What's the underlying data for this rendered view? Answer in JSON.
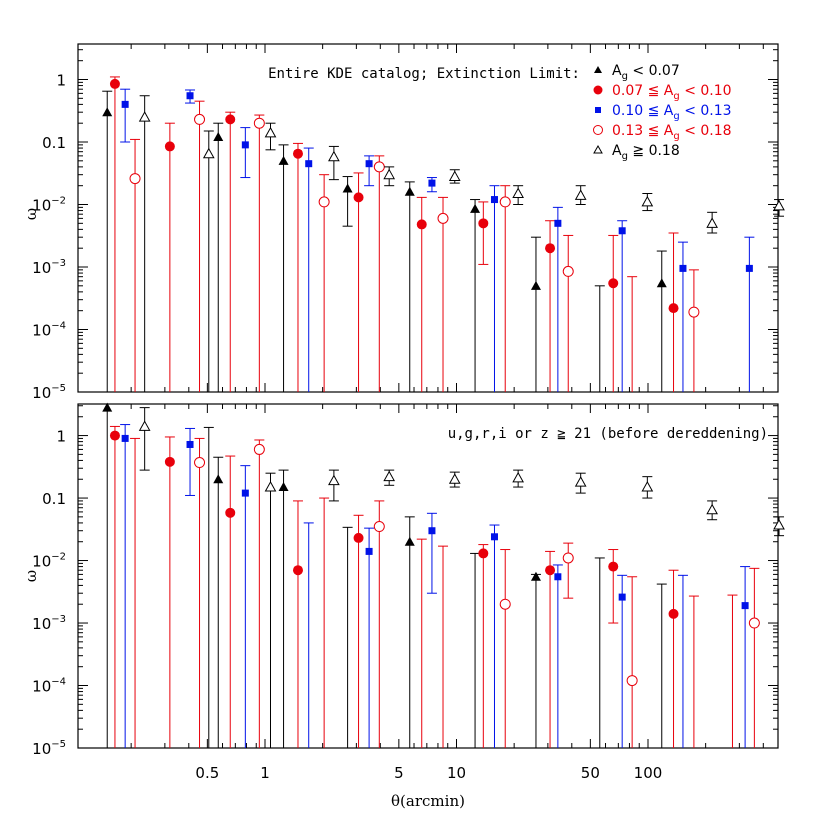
{
  "chart_data": [
    {
      "type": "scatter",
      "panel": "top",
      "title": "Entire KDE catalog; Extinction Limit:",
      "xlabel": "θ(arcmin)",
      "ylabel": "ω",
      "xscale": "log",
      "yscale": "log",
      "xlim": [
        0.12,
        520
      ],
      "ylim": [
        1e-05,
        5
      ],
      "xticks": [
        "0.5",
        "1",
        "5",
        "10",
        "50",
        "100"
      ],
      "yticks": [
        "1",
        "0.1",
        "10⁻²",
        "10⁻³",
        "10⁻⁴",
        "10⁻⁵"
      ],
      "grid": false,
      "legend_position": "top-right",
      "series": [
        {
          "name": "A_g < 0.07",
          "marker": "filled-triangle",
          "color": "#000000",
          "points": [
            [
              0.15,
              0.3,
              1e-05,
              0.65
            ],
            [
              0.57,
              0.12,
              1e-05,
              0.2
            ],
            [
              1.25,
              0.05,
              1e-05,
              0.09
            ],
            [
              2.7,
              0.018,
              0.0045,
              0.028
            ],
            [
              5.7,
              0.016,
              1e-05,
              0.023
            ],
            [
              12.5,
              0.0085,
              1e-05,
              0.012
            ],
            [
              26,
              0.0005,
              1e-05,
              0.003
            ],
            [
              56,
              1e-05,
              1e-05,
              0.0005
            ],
            [
              118,
              0.00055,
              1e-05,
              0.0018
            ]
          ]
        },
        {
          "name": "0.07 ≦ A_g < 0.10",
          "marker": "filled-circle",
          "color": "#e8000b",
          "points": [
            [
              0.155,
              0.85,
              1e-05,
              1.1
            ],
            [
              0.3,
              0.085,
              1e-05,
              0.2
            ],
            [
              0.62,
              0.23,
              1e-05,
              0.3
            ],
            [
              1.4,
              0.065,
              1e-05,
              0.095
            ],
            [
              2.9,
              0.013,
              1e-05,
              0.032
            ],
            [
              6.2,
              0.0048,
              1e-05,
              0.013
            ],
            [
              13,
              0.005,
              0.0011,
              0.011
            ],
            [
              29,
              0.002,
              1e-05,
              0.0055
            ],
            [
              62,
              0.00055,
              1e-05,
              0.0032
            ],
            [
              128,
              0.00022,
              1e-05,
              0.0035
            ]
          ]
        },
        {
          "name": "0.10 ≦ A_g < 0.13",
          "marker": "filled-square",
          "color": "#0012e8",
          "points": [
            [
              0.165,
              0.4,
              0.1,
              0.7
            ],
            [
              0.36,
              0.55,
              0.42,
              0.68
            ],
            [
              0.7,
              0.09,
              0.027,
              0.17
            ],
            [
              1.5,
              0.045,
              1e-05,
              0.08
            ],
            [
              3.1,
              0.045,
              0.02,
              0.06
            ],
            [
              6.6,
              0.022,
              0.016,
              0.027
            ],
            [
              14,
              0.012,
              1e-05,
              0.02
            ],
            [
              30,
              0.005,
              1e-05,
              0.009
            ],
            [
              65,
              0.0038,
              1e-05,
              0.0055
            ],
            [
              135,
              0.00095,
              1e-05,
              0.0025
            ],
            [
              300,
              0.00095,
              1e-05,
              0.003
            ]
          ]
        },
        {
          "name": "0.13 ≦ A_g < 0.18",
          "marker": "open-circle",
          "color": "#e8000b",
          "points": [
            [
              0.175,
              0.026,
              1e-05,
              0.11
            ],
            [
              0.38,
              0.23,
              1e-05,
              0.45
            ],
            [
              0.78,
              0.2,
              1e-05,
              0.27
            ],
            [
              1.7,
              0.011,
              1e-05,
              0.03
            ],
            [
              3.3,
              0.04,
              1e-05,
              0.06
            ],
            [
              7.1,
              0.006,
              1e-05,
              0.013
            ],
            [
              15,
              0.011,
              1e-05,
              0.02
            ],
            [
              32,
              0.00085,
              1e-05,
              0.0032
            ],
            [
              69,
              1e-05,
              1e-05,
              0.0007
            ],
            [
              145,
              0.00019,
              1e-05,
              0.0009
            ]
          ]
        },
        {
          "name": "A_g ≧ 0.18",
          "marker": "open-triangle",
          "color": "#000000",
          "points": [
            [
              0.185,
              0.25,
              1e-05,
              0.55
            ],
            [
              0.4,
              0.065,
              1e-05,
              0.15
            ],
            [
              0.84,
              0.14,
              0.075,
              0.2
            ],
            [
              1.8,
              0.058,
              0.025,
              0.085
            ],
            [
              3.5,
              0.03,
              0.02,
              0.04
            ],
            [
              7.7,
              0.028,
              0.022,
              0.036
            ],
            [
              16.5,
              0.015,
              0.01,
              0.02
            ],
            [
              35,
              0.014,
              0.01,
              0.02
            ],
            [
              78,
              0.011,
              0.008,
              0.015
            ],
            [
              170,
              0.005,
              0.0035,
              0.0075
            ],
            [
              380,
              0.0095,
              0.0065,
              0.012
            ]
          ]
        }
      ]
    },
    {
      "type": "scatter",
      "panel": "bottom",
      "title": "u,g,r,i or z ≧ 21 (before dereddening)",
      "xlabel": "θ(arcmin)",
      "ylabel": "ω",
      "xscale": "log",
      "yscale": "log",
      "xlim": [
        0.12,
        520
      ],
      "ylim": [
        1e-05,
        5
      ],
      "xticks": [
        "0.5",
        "1",
        "5",
        "10",
        "50",
        "100"
      ],
      "yticks": [
        "1",
        "0.1",
        "10⁻²",
        "10⁻³",
        "10⁻⁴",
        "10⁻⁵"
      ],
      "grid": false,
      "series": [
        {
          "name": "A_g < 0.07",
          "marker": "filled-triangle",
          "color": "#000000",
          "points": [
            [
              0.15,
              2.8,
              1e-05,
              3.5
            ],
            [
              0.57,
              0.2,
              1e-05,
              0.45
            ],
            [
              1.25,
              0.15,
              1e-05,
              0.28
            ],
            [
              2.7,
              1e-05,
              1e-05,
              0.034
            ],
            [
              5.7,
              0.02,
              1e-05,
              0.05
            ],
            [
              12.5,
              1e-05,
              1e-05,
              0.013
            ],
            [
              26,
              0.0055,
              1e-05,
              0.006
            ],
            [
              56,
              1e-05,
              1e-05,
              0.011
            ],
            [
              118,
              1e-05,
              1e-05,
              0.0042
            ]
          ]
        },
        {
          "name": "0.07 ≦ A_g < 0.10",
          "marker": "filled-circle",
          "color": "#e8000b",
          "points": [
            [
              0.155,
              1.0,
              1e-05,
              1.4
            ],
            [
              0.3,
              0.38,
              1e-05,
              0.95
            ],
            [
              0.62,
              0.058,
              1e-05,
              0.47
            ],
            [
              1.4,
              0.007,
              1e-05,
              0.09
            ],
            [
              2.9,
              0.023,
              1e-05,
              0.053
            ],
            [
              6.2,
              1e-05,
              1e-05,
              0.022
            ],
            [
              13,
              0.013,
              1e-05,
              0.018
            ],
            [
              29,
              0.007,
              1e-05,
              0.014
            ],
            [
              62,
              0.008,
              0.001,
              0.015
            ],
            [
              128,
              0.0014,
              1e-05,
              0.007
            ],
            [
              260,
              1e-05,
              1e-05,
              0.0028
            ]
          ]
        },
        {
          "name": "0.10 ≦ A_g < 0.13",
          "marker": "filled-square",
          "color": "#0012e8",
          "points": [
            [
              0.165,
              0.9,
              1e-05,
              1.5
            ],
            [
              0.36,
              0.72,
              0.11,
              1.3
            ],
            [
              0.7,
              0.12,
              1e-05,
              0.33
            ],
            [
              1.5,
              1e-05,
              1e-05,
              0.04
            ],
            [
              3.1,
              0.014,
              1e-05,
              0.033
            ],
            [
              6.6,
              0.03,
              0.003,
              0.057
            ],
            [
              14,
              0.024,
              1e-05,
              0.037
            ],
            [
              30,
              0.0055,
              1e-05,
              0.0085
            ],
            [
              65,
              0.0026,
              1e-05,
              0.0058
            ],
            [
              135,
              1e-05,
              1e-05,
              0.0058
            ],
            [
              285,
              0.0019,
              1e-05,
              0.008
            ]
          ]
        },
        {
          "name": "0.13 ≦ A_g < 0.18",
          "marker": "open-circle",
          "color": "#e8000b",
          "points": [
            [
              0.175,
              1e-05,
              1e-05,
              0.9
            ],
            [
              0.38,
              0.37,
              1e-05,
              0.9
            ],
            [
              0.78,
              0.6,
              1e-05,
              0.85
            ],
            [
              1.7,
              1e-05,
              1e-05,
              0.1
            ],
            [
              3.3,
              0.035,
              1e-05,
              0.09
            ],
            [
              7.1,
              1e-05,
              1e-05,
              0.017
            ],
            [
              15,
              0.002,
              1e-05,
              0.015
            ],
            [
              32,
              0.011,
              0.0025,
              0.019
            ],
            [
              69,
              0.00012,
              1e-05,
              0.0055
            ],
            [
              145,
              1e-05,
              1e-05,
              0.0027
            ],
            [
              300,
              0.001,
              1e-05,
              0.0075
            ]
          ]
        },
        {
          "name": "A_g ≧ 0.18",
          "marker": "open-triangle",
          "color": "#000000",
          "points": [
            [
              0.185,
              1.4,
              0.28,
              2.8
            ],
            [
              0.4,
              1e-05,
              1e-05,
              1.35
            ],
            [
              0.84,
              0.15,
              1e-05,
              0.25
            ],
            [
              1.8,
              0.19,
              0.09,
              0.28
            ],
            [
              3.5,
              0.22,
              0.16,
              0.28
            ],
            [
              7.7,
              0.2,
              0.15,
              0.26
            ],
            [
              16.5,
              0.21,
              0.15,
              0.28
            ],
            [
              35,
              0.18,
              0.12,
              0.25
            ],
            [
              78,
              0.15,
              0.1,
              0.22
            ],
            [
              170,
              0.065,
              0.045,
              0.09
            ],
            [
              380,
              0.037,
              0.025,
              0.05
            ]
          ]
        }
      ]
    }
  ],
  "legend": [
    {
      "text": "A",
      "sub": "g",
      "rest": " < 0.07",
      "color": "#000000"
    },
    {
      "text": "0.07 ≦ A",
      "sub": "g",
      "rest": " < 0.10",
      "color": "#e8000b"
    },
    {
      "text": "0.10 ≦ A",
      "sub": "g",
      "rest": " < 0.13",
      "color": "#0012e8"
    },
    {
      "text": "0.13 ≦ A",
      "sub": "g",
      "rest": " < 0.18",
      "color": "#e8000b"
    },
    {
      "text": "A",
      "sub": "g",
      "rest": " ≧ 0.18",
      "color": "#000000"
    }
  ]
}
